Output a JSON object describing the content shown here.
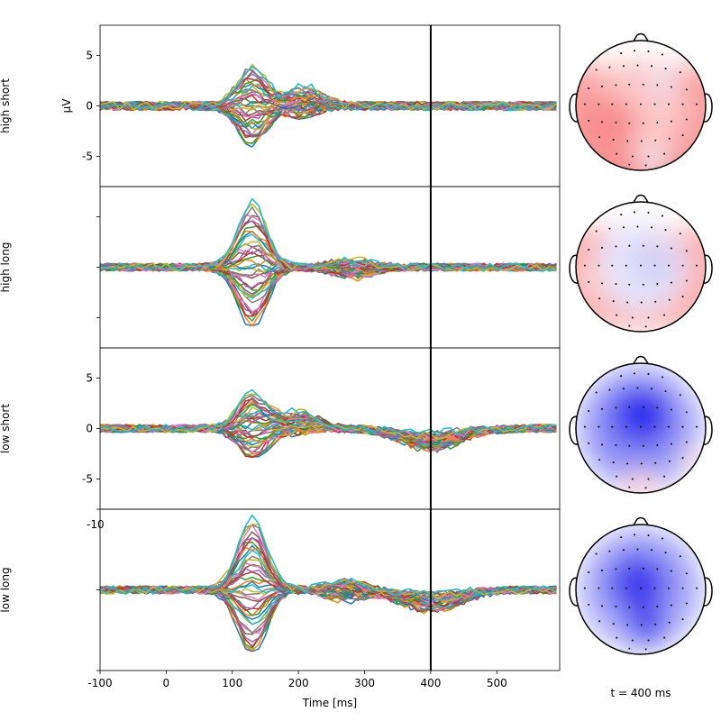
{
  "chart_data": {
    "type": "line",
    "title": "",
    "xlabel": "Time [ms]",
    "ylabel": "µV",
    "xlim": [
      -100,
      595
    ],
    "xticks": [
      -100,
      0,
      100,
      200,
      300,
      400,
      500
    ],
    "xtick_labels": [
      "-100",
      "0",
      "100",
      "200",
      "300",
      "400",
      "500"
    ],
    "time_marker_ms": 400,
    "time_label": "t = 400 ms",
    "time_step_ms": 10,
    "n_channels": 40,
    "channel_colors": [
      "#1f77b4",
      "#ff7f0e",
      "#2ca02c",
      "#d62728",
      "#9467bd",
      "#8c564b",
      "#e377c2",
      "#7f7f7f",
      "#bcbd22",
      "#17becf"
    ],
    "grid": false,
    "legend": "none",
    "panels": [
      {
        "row_label": "high short",
        "ylim": [
          -8,
          8
        ],
        "yticks": [
          -5,
          0,
          5
        ],
        "ytick_labels": [
          "-5",
          "0",
          "5"
        ],
        "show_ylabel": true,
        "overlay_text": "",
        "erp_components": [
          {
            "peak_ms": 130,
            "width_ms": 22,
            "amplitude_range_uv": [
              -4.0,
              4.0
            ]
          },
          {
            "peak_ms": 210,
            "width_ms": 25,
            "amplitude_range_uv": [
              -1.0,
              1.8
            ]
          }
        ],
        "noise_uv": 0.45,
        "topomap": {
          "value_at_marker": 0.5,
          "bands": [
            {
              "bottom_y": 0.3,
              "color": "#f56e6e"
            },
            {
              "bottom_y": 0.6,
              "color": "#f9a0a0"
            }
          ],
          "blobs": [
            {
              "x": 0.0,
              "y": 0.0,
              "r": 0.7,
              "color": "#fcc7c7"
            },
            {
              "x": -0.5,
              "y": -0.3,
              "r": 0.45,
              "color": "#f88c8c"
            },
            {
              "x": 0.35,
              "y": 0.35,
              "r": 0.18,
              "color": "#e6e6ff"
            },
            {
              "x": 0.2,
              "y": -0.85,
              "r": 0.22,
              "color": "#ececf7"
            }
          ]
        }
      },
      {
        "row_label": "high long",
        "ylim": [
          -8,
          8
        ],
        "yticks": [
          -5,
          0,
          5
        ],
        "ytick_labels": [
          "",
          "",
          ""
        ],
        "show_ylabel": false,
        "overlay_text": "",
        "erp_components": [
          {
            "peak_ms": 130,
            "width_ms": 22,
            "amplitude_range_uv": [
              -6.0,
              6.3
            ]
          },
          {
            "peak_ms": 280,
            "width_ms": 30,
            "amplitude_range_uv": [
              -1.0,
              0.8
            ]
          }
        ],
        "noise_uv": 0.4,
        "topomap": {
          "value_at_marker": -0.1,
          "bands": [
            {
              "bottom_y": 0.6,
              "color": "#fbb3b3"
            }
          ],
          "blobs": [
            {
              "x": 0.0,
              "y": 0.0,
              "r": 0.7,
              "color": "#e4e4fc"
            },
            {
              "x": 0.2,
              "y": 0.1,
              "r": 0.35,
              "color": "#cfcff9"
            },
            {
              "x": 0.25,
              "y": 0.35,
              "r": 0.12,
              "color": "#fbd0d0"
            },
            {
              "x": -0.7,
              "y": -0.2,
              "r": 0.22,
              "color": "#fbd6d6"
            }
          ]
        }
      },
      {
        "row_label": "low short",
        "ylim": [
          -8,
          8
        ],
        "yticks": [
          -5,
          0,
          5
        ],
        "ytick_labels": [
          "-5",
          "0",
          "5"
        ],
        "show_ylabel": false,
        "overlay_text": "",
        "erp_components": [
          {
            "peak_ms": 130,
            "width_ms": 22,
            "amplitude_range_uv": [
              -3.0,
              3.5
            ]
          },
          {
            "peak_ms": 200,
            "width_ms": 30,
            "amplitude_range_uv": [
              -0.5,
              1.6
            ]
          },
          {
            "peak_ms": 400,
            "width_ms": 45,
            "amplitude_range_uv": [
              -2.0,
              -0.5
            ]
          }
        ],
        "noise_uv": 0.4,
        "topomap": {
          "value_at_marker": -1.5,
          "bands": [],
          "blobs": [
            {
              "x": 0.0,
              "y": 0.0,
              "r": 1.0,
              "color": "#b9b9fa"
            },
            {
              "x": -0.05,
              "y": 0.0,
              "r": 0.75,
              "color": "#8e8ef5"
            },
            {
              "x": 0.0,
              "y": 0.2,
              "r": 0.48,
              "color": "#4949ef"
            },
            {
              "x": 0.05,
              "y": 0.2,
              "r": 0.25,
              "color": "#1f1fec"
            },
            {
              "x": 0.0,
              "y": -0.95,
              "r": 0.3,
              "color": "#fbdada"
            },
            {
              "x": 0.85,
              "y": -0.5,
              "r": 0.22,
              "color": "#fae3e3"
            }
          ]
        }
      },
      {
        "row_label": "low long",
        "ylim": [
          -10,
          10
        ],
        "yticks": [
          -10,
          0,
          10
        ],
        "ytick_labels": [
          "",
          "",
          ""
        ],
        "show_ylabel": false,
        "overlay_text": "-10",
        "erp_components": [
          {
            "peak_ms": 130,
            "width_ms": 22,
            "amplitude_range_uv": [
              -8.0,
              9.0
            ]
          },
          {
            "peak_ms": 270,
            "width_ms": 30,
            "amplitude_range_uv": [
              -1.2,
              1.2
            ]
          },
          {
            "peak_ms": 400,
            "width_ms": 45,
            "amplitude_range_uv": [
              -2.5,
              -0.5
            ]
          }
        ],
        "noise_uv": 0.5,
        "topomap": {
          "value_at_marker": -1.8,
          "bands": [],
          "blobs": [
            {
              "x": 0.0,
              "y": 0.0,
              "r": 1.0,
              "color": "#c2c2fa"
            },
            {
              "x": 0.0,
              "y": 0.05,
              "r": 0.75,
              "color": "#9898f6"
            },
            {
              "x": -0.05,
              "y": 0.1,
              "r": 0.45,
              "color": "#5252ef"
            },
            {
              "x": 0.0,
              "y": 0.05,
              "r": 0.22,
              "color": "#2020eb"
            },
            {
              "x": 0.1,
              "y": -0.55,
              "r": 0.3,
              "color": "#4a4aee"
            }
          ]
        }
      }
    ],
    "sensors": [
      [
        -0.31,
        0.82
      ],
      [
        -0.1,
        0.86
      ],
      [
        0.12,
        0.85
      ],
      [
        0.34,
        0.8
      ],
      [
        -0.7,
        0.56
      ],
      [
        -0.49,
        0.6
      ],
      [
        -0.27,
        0.62
      ],
      [
        -0.05,
        0.63
      ],
      [
        0.17,
        0.62
      ],
      [
        0.39,
        0.58
      ],
      [
        0.62,
        0.52
      ],
      [
        -0.82,
        0.27
      ],
      [
        -0.61,
        0.3
      ],
      [
        -0.39,
        0.32
      ],
      [
        -0.18,
        0.33
      ],
      [
        0.04,
        0.33
      ],
      [
        0.26,
        0.32
      ],
      [
        0.48,
        0.29
      ],
      [
        0.72,
        0.25
      ],
      [
        -0.88,
        0.02
      ],
      [
        -0.66,
        0.02
      ],
      [
        -0.45,
        0.02
      ],
      [
        -0.23,
        0.02
      ],
      [
        0.0,
        0.02
      ],
      [
        0.22,
        0.02
      ],
      [
        0.44,
        0.02
      ],
      [
        0.66,
        0.02
      ],
      [
        0.88,
        0.02
      ],
      [
        -0.82,
        -0.24
      ],
      [
        -0.61,
        -0.26
      ],
      [
        -0.39,
        -0.27
      ],
      [
        -0.18,
        -0.28
      ],
      [
        0.04,
        -0.28
      ],
      [
        0.26,
        -0.27
      ],
      [
        0.48,
        -0.25
      ],
      [
        0.72,
        -0.22
      ],
      [
        -0.65,
        -0.5
      ],
      [
        -0.43,
        -0.54
      ],
      [
        -0.21,
        -0.56
      ],
      [
        0.01,
        -0.56
      ],
      [
        0.23,
        -0.55
      ],
      [
        0.45,
        -0.52
      ],
      [
        0.66,
        -0.47
      ],
      [
        -0.38,
        -0.76
      ],
      [
        -0.13,
        -0.8
      ],
      [
        0.12,
        -0.8
      ],
      [
        0.37,
        -0.76
      ],
      [
        -0.18,
        -0.93
      ],
      [
        0.08,
        -0.94
      ]
    ]
  }
}
